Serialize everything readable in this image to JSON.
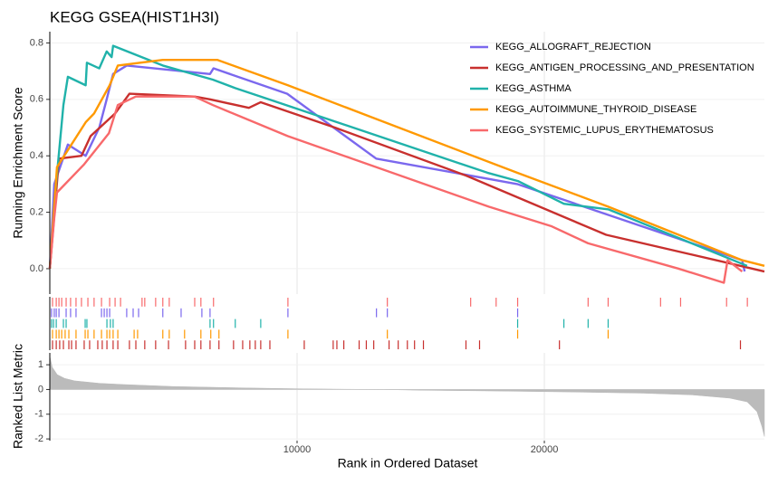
{
  "chart_data": [
    {
      "type": "line",
      "title": "KEGG GSEA(HIST1H3I)",
      "ylabel": "Running Enrichment Score",
      "xlim": [
        0,
        28900
      ],
      "ylim": [
        -0.09,
        0.84
      ],
      "yticks": [
        {
          "value": 0,
          "label": "0.0"
        },
        0.2,
        0.4,
        0.6,
        0.8
      ],
      "xticks": [
        10000,
        20000
      ],
      "grid": true,
      "legend": "top-right",
      "series": [
        {
          "name": "KEGG_ALLOGRAFT_REJECTION",
          "color": "#7B68EE",
          "x": [
            0,
            180,
            730,
            1450,
            2000,
            2300,
            2560,
            3110,
            6480,
            6620,
            9600,
            13200,
            18900,
            28000,
            28100
          ],
          "values": [
            0,
            0.3,
            0.44,
            0.4,
            0.5,
            0.6,
            0.69,
            0.72,
            0.69,
            0.71,
            0.62,
            0.39,
            0.3,
            0.03,
            -0.01
          ]
        },
        {
          "name": "KEGG_ANTIGEN_PROCESSING_AND_PRESENTATION",
          "color": "#C8302E",
          "x": [
            0,
            370,
            1280,
            1650,
            2640,
            3220,
            5850,
            6480,
            8050,
            8530,
            11530,
            16830,
            22500,
            27440,
            28900
          ],
          "values": [
            0,
            0.39,
            0.4,
            0.47,
            0.55,
            0.62,
            0.61,
            0.6,
            0.57,
            0.59,
            0.5,
            0.33,
            0.12,
            0.02,
            -0.01
          ]
        },
        {
          "name": "KEGG_ASTHMA",
          "color": "#20B2AA",
          "x": [
            0,
            200,
            550,
            730,
            1450,
            1500,
            2000,
            2300,
            2500,
            2560,
            4570,
            6590,
            7500,
            8530,
            17700,
            18950,
            20790,
            22600,
            28200
          ],
          "values": [
            0,
            0.25,
            0.58,
            0.68,
            0.65,
            0.73,
            0.71,
            0.77,
            0.75,
            0.79,
            0.72,
            0.67,
            0.64,
            0.61,
            0.34,
            0.31,
            0.23,
            0.21,
            0.01
          ]
        },
        {
          "name": "KEGG_AUTOIMMUNE_THYROID_DISEASE",
          "color": "#FF9900",
          "x": [
            0,
            290,
            1460,
            1790,
            2420,
            2750,
            4570,
            6770,
            9630,
            18900,
            22580,
            28000,
            28900
          ],
          "values": [
            0,
            0.36,
            0.52,
            0.55,
            0.65,
            0.72,
            0.74,
            0.74,
            0.65,
            0.34,
            0.22,
            0.03,
            0.01
          ]
        },
        {
          "name": "KEGG_SYSTEMIC_LUPUS_ERYTHEMATOSUS",
          "color": "#F8696B",
          "x": [
            0,
            180,
            290,
            1390,
            2390,
            2750,
            3480,
            5850,
            6590,
            9620,
            17750,
            20300,
            21770,
            25430,
            27260,
            27410,
            28000
          ],
          "values": [
            0,
            0.18,
            0.27,
            0.37,
            0.48,
            0.58,
            0.61,
            0.61,
            0.58,
            0.47,
            0.22,
            0.15,
            0.09,
            0,
            -0.05,
            0.03,
            -0.01
          ]
        }
      ]
    },
    {
      "type": "rug",
      "xlim": [
        0,
        28900
      ],
      "series": [
        {
          "color": "#F8696B",
          "x": [
            110,
            260,
            370,
            480,
            660,
            840,
            1060,
            1280,
            1540,
            1790,
            2090,
            2420,
            2640,
            2860,
            3730,
            3840,
            4280,
            4570,
            4830,
            5860,
            6110,
            6620,
            9630,
            13650,
            17020,
            18050,
            18920,
            21770,
            22580,
            24700,
            25510,
            27370,
            28210
          ]
        },
        {
          "color": "#7B68EE",
          "x": [
            70,
            180,
            260,
            370,
            660,
            840,
            1060,
            2090,
            2200,
            2310,
            2420,
            3110,
            3370,
            3590,
            4570,
            5310,
            6150,
            6480,
            9630,
            13210,
            13650,
            18920
          ]
        },
        {
          "color": "#20B2AA",
          "x": [
            70,
            150,
            260,
            550,
            660,
            1430,
            1500,
            2310,
            2450,
            2560,
            6480,
            6620,
            7500,
            8530,
            18920,
            20790,
            21770,
            22580
          ]
        },
        {
          "color": "#FF9900",
          "x": [
            110,
            260,
            370,
            480,
            620,
            770,
            1060,
            1430,
            1540,
            1790,
            2090,
            2310,
            2420,
            2560,
            2750,
            3410,
            3550,
            4570,
            4830,
            5450,
            6110,
            6510,
            6840,
            9630,
            13650,
            18920,
            22580
          ]
        },
        {
          "color": "#C8302E",
          "x": [
            110,
            260,
            400,
            550,
            770,
            880,
            1060,
            1390,
            1610,
            1940,
            2120,
            2310,
            2560,
            2750,
            3220,
            3480,
            3840,
            4280,
            4800,
            5490,
            5860,
            6110,
            6480,
            6840,
            7430,
            7800,
            8090,
            8310,
            8530,
            8900,
            10290,
            11460,
            11610,
            11890,
            12510,
            12800,
            13100,
            13720,
            14090,
            14460,
            14750,
            15110,
            16830,
            17380,
            20610,
            27930
          ]
        }
      ]
    },
    {
      "type": "area",
      "ylabel": "Ranked List Metric",
      "xlabel": "Rank in Ordered Dataset",
      "xlim": [
        0,
        28900
      ],
      "ylim": [
        -2.07,
        1.48
      ],
      "yticks": [
        1,
        0,
        -1,
        -2
      ],
      "xticks": [
        10000,
        20000
      ],
      "grid": true,
      "color": "#BBBBBB",
      "x": [
        0,
        100,
        300,
        600,
        1000,
        2000,
        3000,
        5000,
        8000,
        10000,
        12000,
        13500,
        15000,
        18000,
        21000,
        24000,
        26000,
        27500,
        28200,
        28600,
        28800,
        28900
      ],
      "values": [
        1.35,
        0.9,
        0.6,
        0.45,
        0.35,
        0.25,
        0.2,
        0.12,
        0.06,
        0.03,
        0.01,
        0,
        -0.03,
        -0.06,
        -0.1,
        -0.15,
        -0.22,
        -0.35,
        -0.5,
        -0.9,
        -1.5,
        -1.9
      ]
    }
  ]
}
